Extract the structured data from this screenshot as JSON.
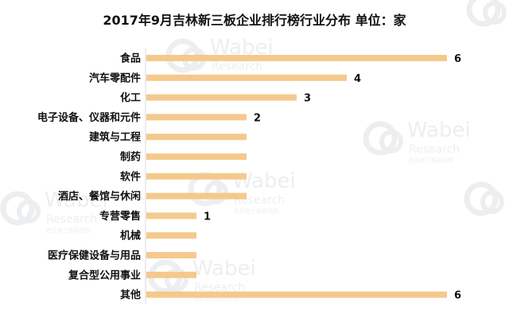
{
  "chart_data": {
    "type": "bar",
    "orientation": "horizontal",
    "title": "2017年9月吉林新三板企业排行榜行业分布  单位：家",
    "categories": [
      "食品",
      "汽车零配件",
      "化工",
      "电子设备、仪器和元件",
      "建筑与工程",
      "制药",
      "软件",
      "酒店、餐馆与休闲",
      "专营零售",
      "机械",
      "医疗保健设备与用品",
      "复合型公用事业",
      "其他"
    ],
    "values": [
      6,
      4,
      3,
      2,
      2,
      2,
      2,
      2,
      1,
      1,
      1,
      1,
      6
    ],
    "data_labels": [
      "6",
      "4",
      "3",
      "2",
      "",
      "",
      "",
      "",
      "1",
      "",
      "",
      "",
      "6"
    ],
    "xlim": [
      0,
      6
    ],
    "grid": false,
    "bar_color": "#F5C98C"
  },
  "watermark": {
    "brand": "Wabei",
    "subtitle": "Research",
    "small": "挖贝新三板研究院"
  }
}
